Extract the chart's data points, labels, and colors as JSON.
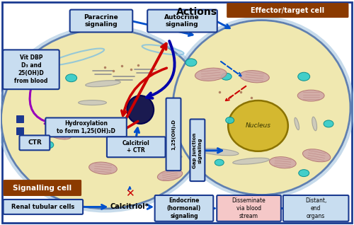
{
  "fig_width": 5.0,
  "fig_height": 3.18,
  "dpi": 100,
  "bg_color": "#ffffff",
  "cell_bg": "#f0e8b0",
  "cell_outline": "#6080b0",
  "cell2_bg": "#f0e8b0",
  "nucleus_left_bg": "#1a1a50",
  "nucleus_right_bg": "#d4b830",
  "nucleus_right_outline": "#8a7200",
  "cyan_color": "#30cccc",
  "brown_box": "#8B3A00",
  "blue_dark": "#1a3a90",
  "blue_light_bg": "#c8ddf0",
  "blue_mid_bg": "#a0c4e8",
  "pink_bg": "#f5c8c8",
  "arrow_red": "#cc0000",
  "arrow_blue": "#0050cc",
  "arrow_blue_dark": "#0000aa",
  "arrow_purple": "#9900bb",
  "mito_fill": "#d0a8a8",
  "mito_stroke": "#b07070",
  "er_color": "#b0b0b0",
  "white": "#ffffff",
  "label_effector": "Effector/target cell",
  "label_signalling": "Signalling cell",
  "label_renal": "Renal tubular cells",
  "label_calcitriol_bottom": "Calcitriol",
  "label_endocrine": "Endocrine\n(hormonal)\nsignaling",
  "label_disseminate": "Disseminate\nvia blood\nstream",
  "label_distant": "Distant,\nend\norgans",
  "label_paracrine": "Paracrine\nsignaling",
  "label_autocrine": "Autocrine\nsignaling",
  "label_vitdbp": "Vit DBP\nD₃ and\n25(OH)D\nfrom blood",
  "label_hydroxylation": "Hydroxylation\nto form 1,25(OH)₂D",
  "label_calcitriol_ctr": "Calcitriol\n+ CTR",
  "label_ctr": "CTR",
  "label_125ohd": "1,25(OH)₂D",
  "label_gap_junction": "Gap junction\nsignaling",
  "label_nucleus": "Nucleus",
  "label_actions": "Actions"
}
